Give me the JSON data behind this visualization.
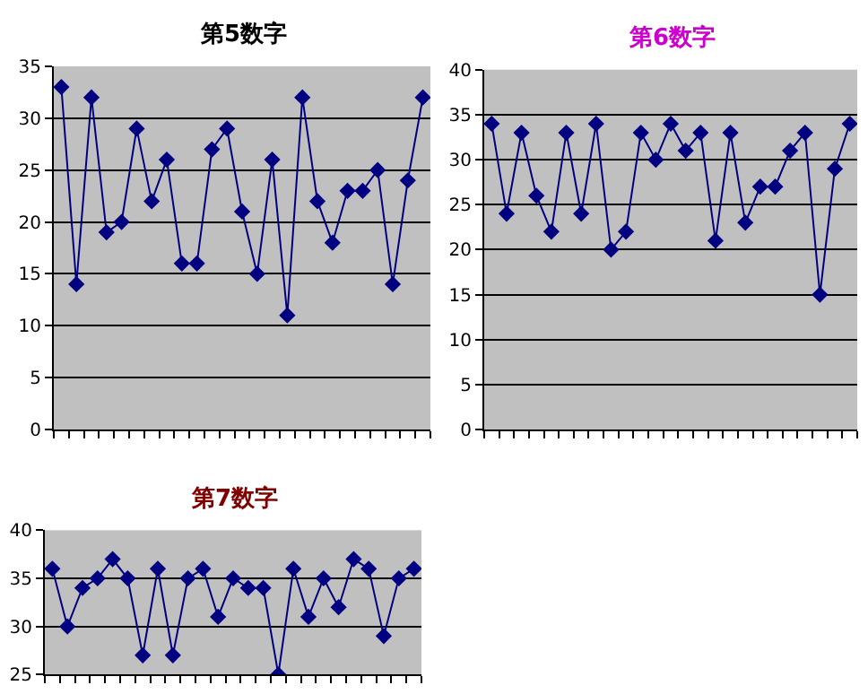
{
  "chart_data": [
    {
      "type": "line",
      "title": "第5数字",
      "categories": [
        null,
        null,
        null,
        null,
        null,
        null,
        null,
        null,
        null,
        null,
        null,
        null,
        null,
        null,
        null,
        null,
        null,
        null,
        null,
        null,
        null,
        null,
        null,
        null,
        null
      ],
      "series": [
        {
          "color": "#000080",
          "values": [
            33,
            14,
            32,
            19,
            20,
            29,
            22,
            26,
            16,
            16,
            27,
            29,
            21,
            15,
            26,
            11,
            32,
            22,
            18,
            23,
            23,
            25,
            14,
            24,
            32
          ]
        }
      ],
      "ylim": [
        0,
        35
      ],
      "yticks": [
        0,
        5,
        10,
        15,
        20,
        25,
        30,
        35
      ],
      "grid": "y",
      "marker": "diamond",
      "tick_labels": "y"
    },
    {
      "type": "line",
      "title": "第6数字",
      "categories": [
        null,
        null,
        null,
        null,
        null,
        null,
        null,
        null,
        null,
        null,
        null,
        null,
        null,
        null,
        null,
        null,
        null,
        null,
        null,
        null,
        null,
        null,
        null,
        null,
        null
      ],
      "series": [
        {
          "color": "#000080",
          "values": [
            34,
            24,
            33,
            26,
            22,
            33,
            24,
            34,
            20,
            22,
            33,
            30,
            34,
            31,
            33,
            21,
            33,
            23,
            27,
            27,
            31,
            33,
            15,
            29,
            34
          ]
        }
      ],
      "ylim": [
        0,
        40
      ],
      "yticks": [
        0,
        5,
        10,
        15,
        20,
        25,
        30,
        35,
        40
      ],
      "grid": "y",
      "marker": "diamond",
      "tick_labels": "y"
    },
    {
      "type": "line",
      "title": "第7数字",
      "categories": [
        null,
        null,
        null,
        null,
        null,
        null,
        null,
        null,
        null,
        null,
        null,
        null,
        null,
        null,
        null,
        null,
        null,
        null,
        null,
        null,
        null,
        null,
        null,
        null,
        null
      ],
      "series": [
        {
          "color": "#000080",
          "values": [
            36,
            30,
            34,
            35,
            37,
            35,
            27,
            36,
            27,
            35,
            36,
            31,
            35,
            34,
            34,
            25,
            36,
            31,
            35,
            32,
            37,
            36,
            29,
            35,
            36
          ]
        }
      ],
      "ylim": [
        25,
        40
      ],
      "yticks": [
        25,
        30,
        35,
        40
      ],
      "grid": "y",
      "marker": "diamond",
      "tick_labels": "y"
    }
  ]
}
